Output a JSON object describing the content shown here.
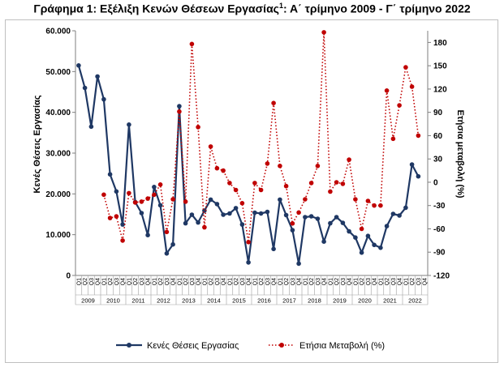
{
  "title_main": "Γράφημα 1: Εξέλιξη Κενών Θέσεων Εργασίας",
  "title_sup": "1",
  "title_rest": ": Α΄ τρίμηνο 2009 - Γ΄ τρίμηνο 2022",
  "chart_data": {
    "type": "line",
    "ylabel_left": "Κενές Θέσεις Εργασίας",
    "ylabel_right": "Ετήσια μεταβολή (%)",
    "left_axis": {
      "ylim": [
        0,
        60000
      ],
      "ticks": [
        "0",
        "10.000",
        "20.000",
        "30.000",
        "40.000",
        "50.000",
        "60.000"
      ]
    },
    "right_axis": {
      "ylim": [
        -120,
        195
      ],
      "ticks": [
        "-120",
        "-90",
        "-60",
        "-30",
        "0",
        "30",
        "60",
        "90",
        "120",
        "150",
        "180"
      ]
    },
    "quarter_labels": [
      "Q1",
      "Q2",
      "Q3",
      "Q4"
    ],
    "years": [
      "2009",
      "2010",
      "2011",
      "2012",
      "2013",
      "2014",
      "2015",
      "2016",
      "2017",
      "2018",
      "2019",
      "2020",
      "2021",
      "2022"
    ],
    "grid": false,
    "legend_position": "bottom",
    "series": [
      {
        "name": "Κενές Θέσεις Εργασίας",
        "axis": "left",
        "color": "#1f3864",
        "style": "solid",
        "values": [
          51500,
          46000,
          36500,
          48800,
          43200,
          24800,
          20600,
          12500,
          37000,
          18000,
          15300,
          9900,
          21700,
          17200,
          5400,
          7600,
          41500,
          12800,
          14900,
          13000,
          15900,
          18600,
          17500,
          14900,
          15200,
          16500,
          12500,
          3200,
          15400,
          15200,
          15600,
          6500,
          18600,
          14800,
          11100,
          2900,
          14300,
          14500,
          13900,
          8300,
          12800,
          14300,
          12900,
          10800,
          9300,
          5600,
          9700,
          7500,
          6800,
          12100,
          15100,
          14700,
          16600,
          27200,
          24300
        ]
      },
      {
        "name": "Ετήσια Μεταβολή (%)",
        "axis": "right",
        "color": "#c00000",
        "style": "dotted",
        "values": [
          null,
          null,
          null,
          null,
          -16,
          -46,
          -44,
          -75,
          -14,
          -26,
          -25,
          -21,
          -16,
          -3,
          -64,
          -22,
          91,
          -25,
          178,
          71,
          -58,
          46,
          18,
          15,
          -1,
          -10,
          -27,
          -77,
          -1,
          -10,
          24,
          102,
          21,
          -5,
          -53,
          -39,
          -22,
          -1,
          21,
          193,
          -12,
          0,
          -2,
          29,
          -22,
          -60,
          -24,
          -30,
          -30,
          118,
          56,
          99,
          148,
          123,
          60
        ]
      }
    ]
  }
}
